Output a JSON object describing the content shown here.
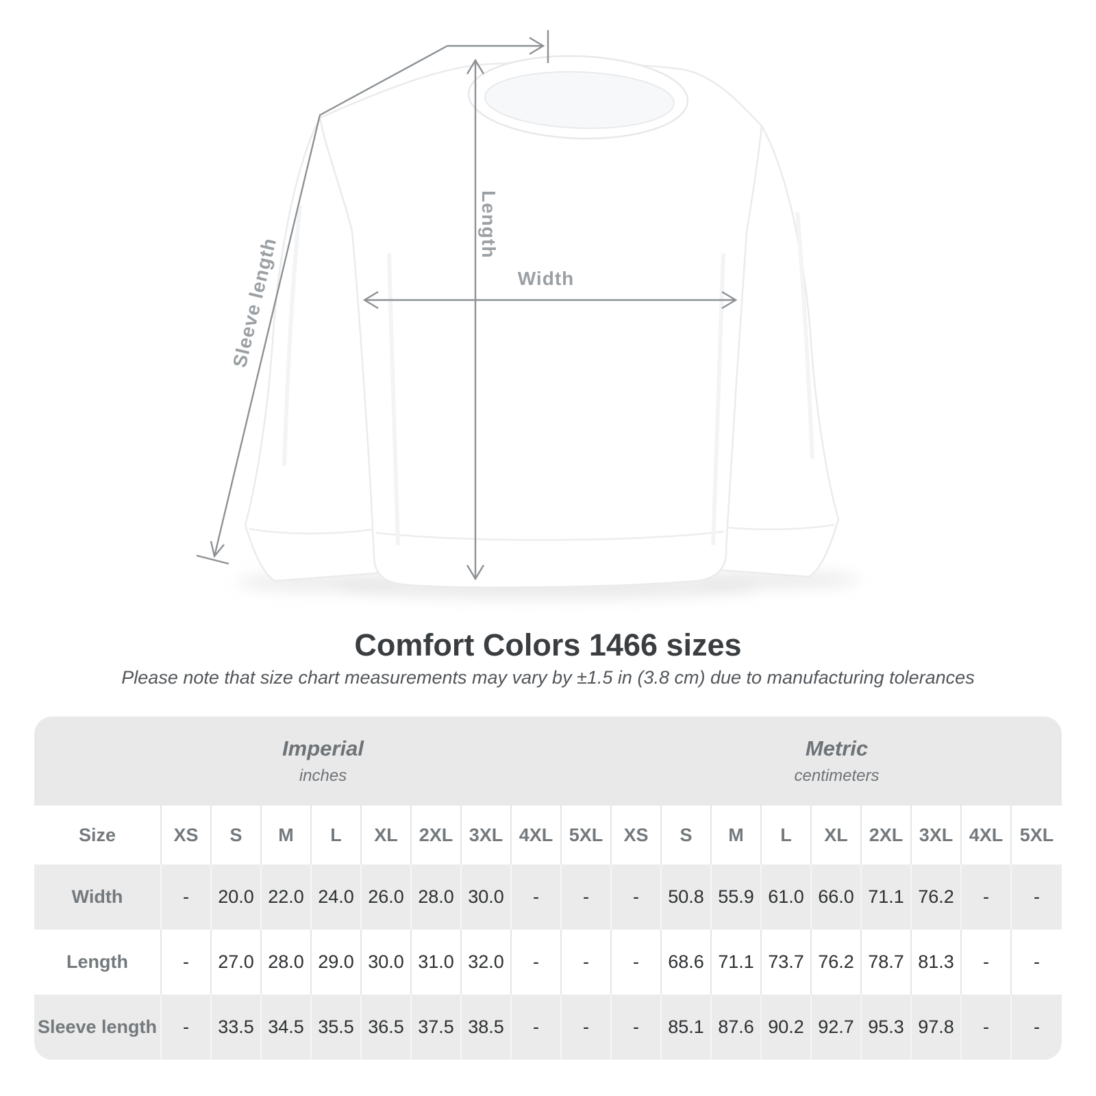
{
  "colors": {
    "measure_line": "#8c9195",
    "measure_label": "#9ba0a4",
    "card_band_bg": "#e9e9e9",
    "row_alt_bg": "#ebebeb",
    "header_text": "#74797d",
    "value_text": "#2c2f31",
    "title_text": "#3a3e41"
  },
  "diagram": {
    "labels": {
      "length": "Length",
      "width": "Width",
      "sleeve_length": "Sleeve length"
    }
  },
  "header": {
    "title": "Comfort Colors 1466 sizes",
    "subtitle": "Please note that size chart measurements may vary by ±1.5 in (3.8 cm) due to manufacturing tolerances"
  },
  "table": {
    "size_label": "Size",
    "unit_groups": [
      {
        "label": "Imperial",
        "sublabel": "inches"
      },
      {
        "label": "Metric",
        "sublabel": "centimeters"
      }
    ],
    "columns": [
      "XS",
      "S",
      "M",
      "L",
      "XL",
      "2XL",
      "3XL",
      "4XL",
      "5XL",
      "XS",
      "S",
      "M",
      "L",
      "XL",
      "2XL",
      "3XL",
      "4XL",
      "5XL"
    ],
    "rows": [
      {
        "label": "Width",
        "values": [
          "-",
          "20.0",
          "22.0",
          "24.0",
          "26.0",
          "28.0",
          "30.0",
          "-",
          "-",
          "-",
          "50.8",
          "55.9",
          "61.0",
          "66.0",
          "71.1",
          "76.2",
          "-",
          "-"
        ]
      },
      {
        "label": "Length",
        "values": [
          "-",
          "27.0",
          "28.0",
          "29.0",
          "30.0",
          "31.0",
          "32.0",
          "-",
          "-",
          "-",
          "68.6",
          "71.1",
          "73.7",
          "76.2",
          "78.7",
          "81.3",
          "-",
          "-"
        ]
      },
      {
        "label": "Sleeve length",
        "values": [
          "-",
          "33.5",
          "34.5",
          "35.5",
          "36.5",
          "37.5",
          "38.5",
          "-",
          "-",
          "-",
          "85.1",
          "87.6",
          "90.2",
          "92.7",
          "95.3",
          "97.8",
          "-",
          "-"
        ]
      }
    ]
  }
}
